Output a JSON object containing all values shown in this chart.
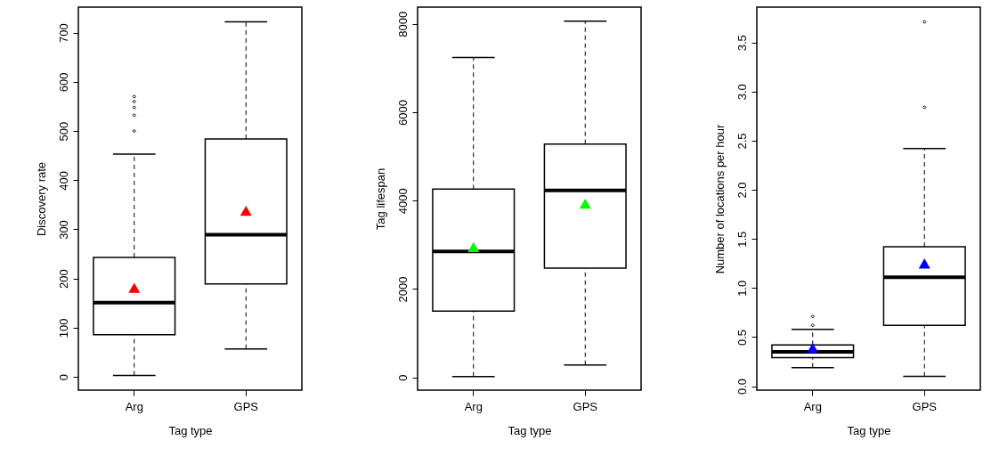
{
  "chart_data": [
    {
      "type": "box",
      "categories": [
        "Arg",
        "GPS"
      ],
      "xlabel": "Tag type",
      "ylabel": "Discovery rate",
      "ylim": [
        -27,
        752
      ],
      "yticks": [
        0,
        100,
        200,
        300,
        400,
        500,
        600,
        700
      ],
      "boxes": [
        {
          "low": 3,
          "q1": 86,
          "median": 151,
          "q3": 243,
          "high": 453,
          "outliers": [
            500,
            532,
            548,
            560,
            570
          ]
        },
        {
          "low": 57,
          "q1": 189,
          "median": 289,
          "q3": 484,
          "high": 722
        }
      ],
      "series": [
        {
          "type": "scatter",
          "x": [
            "Arg",
            "GPS"
          ],
          "values": [
            181,
            338
          ],
          "color": "#ff0000",
          "marker": "triangle"
        }
      ]
    },
    {
      "type": "box",
      "categories": [
        "Arg",
        "GPS"
      ],
      "xlabel": "Tag type",
      "ylabel": "Tag lifespan",
      "ylim": [
        -290,
        8380
      ],
      "yticks": [
        0,
        2000,
        4000,
        6000,
        8000
      ],
      "boxes": [
        {
          "low": 20,
          "q1": 1500,
          "median": 2850,
          "q3": 4260,
          "high": 7240
        },
        {
          "low": 280,
          "q1": 2470,
          "median": 4230,
          "q3": 5280,
          "high": 8060
        }
      ],
      "series": [
        {
          "type": "scatter",
          "x": [
            "Arg",
            "GPS"
          ],
          "values": [
            2950,
            3930
          ],
          "color": "#00ff00",
          "marker": "triangle"
        }
      ]
    },
    {
      "type": "box",
      "categories": [
        "Arg",
        "GPS"
      ],
      "xlabel": "Tag type",
      "ylabel": "Number of locations per hour",
      "ylim": [
        -0.04,
        3.86
      ],
      "yticks": [
        {
          "value": 0,
          "label": "0.0"
        },
        {
          "value": 0.5,
          "label": "0.5"
        },
        {
          "value": 1,
          "label": "1.0"
        },
        {
          "value": 1.5,
          "label": "1.5"
        },
        {
          "value": 2,
          "label": "2.0"
        },
        {
          "value": 2.5,
          "label": "2.5"
        },
        {
          "value": 3,
          "label": "3.0"
        },
        {
          "value": 3.5,
          "label": "3.5"
        }
      ],
      "boxes": [
        {
          "low": 0.19,
          "q1": 0.29,
          "median": 0.35,
          "q3": 0.42,
          "high": 0.58,
          "outliers": [
            0.62,
            0.71
          ]
        },
        {
          "low": 0.1,
          "q1": 0.62,
          "median": 1.11,
          "q3": 1.42,
          "high": 2.42,
          "outliers": [
            2.84,
            3.71
          ]
        }
      ],
      "series": [
        {
          "type": "scatter",
          "x": [
            "Arg",
            "GPS"
          ],
          "values": [
            0.39,
            1.25
          ],
          "color": "#0000ff",
          "marker": "triangle"
        }
      ]
    }
  ]
}
